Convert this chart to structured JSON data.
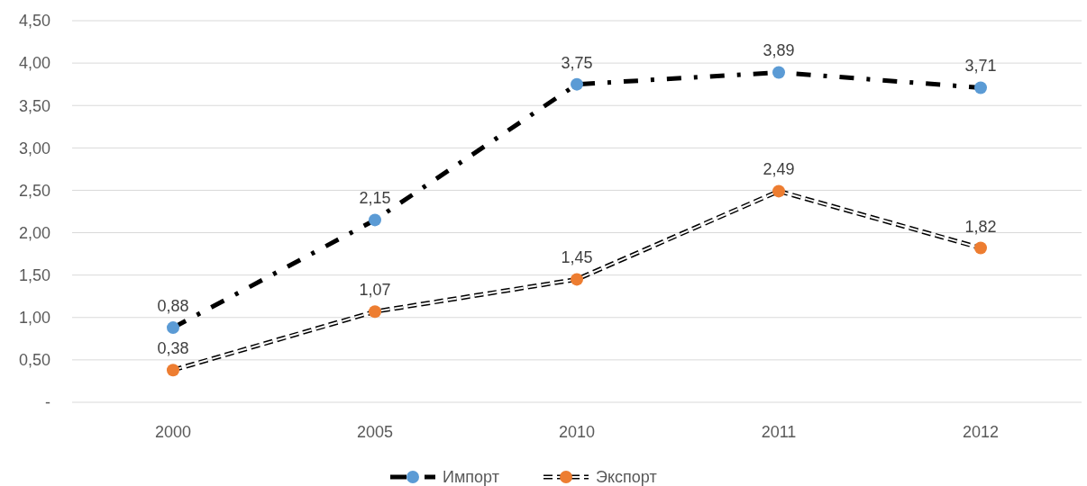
{
  "chart_data": {
    "type": "line",
    "categories": [
      "2000",
      "2005",
      "2010",
      "2011",
      "2012"
    ],
    "series": [
      {
        "name": "Импорт",
        "color": "#5b9bd5",
        "values": [
          0.88,
          2.15,
          3.75,
          3.89,
          3.71
        ],
        "value_labels": [
          "0,88",
          "2,15",
          "3,75",
          "3,89",
          "3,71"
        ],
        "line_style": "dashed"
      },
      {
        "name": "Экспорт",
        "color": "#ed7d31",
        "values": [
          0.38,
          1.07,
          1.45,
          2.49,
          1.82
        ],
        "value_labels": [
          "0,38",
          "1,07",
          "1,45",
          "2,49",
          "1,82"
        ],
        "line_style": "dashed"
      }
    ],
    "ylim": [
      0,
      4.5
    ],
    "yticks": [
      {
        "value": 0,
        "label": "-"
      },
      {
        "value": 0.5,
        "label": "0,50"
      },
      {
        "value": 1,
        "label": "1,00"
      },
      {
        "value": 1.5,
        "label": "1,50"
      },
      {
        "value": 2,
        "label": "2,00"
      },
      {
        "value": 2.5,
        "label": "2,50"
      },
      {
        "value": 3,
        "label": "3,00"
      },
      {
        "value": 3.5,
        "label": "3,50"
      },
      {
        "value": 4,
        "label": "4,00"
      },
      {
        "value": 4.5,
        "label": "4,50"
      }
    ],
    "grid": "y",
    "legend": "bottom",
    "marker": "circle"
  }
}
